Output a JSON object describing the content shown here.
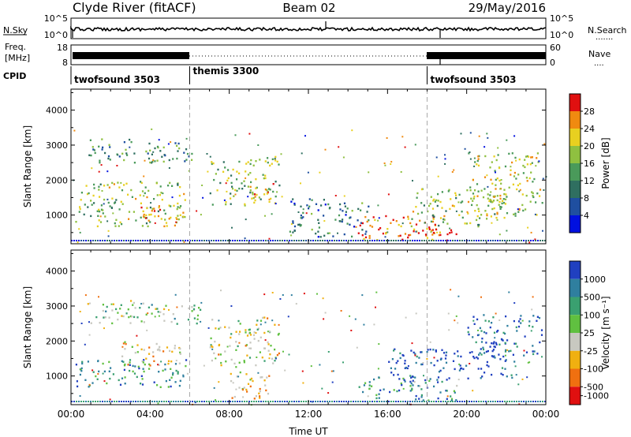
{
  "header": {
    "station": "Clyde River (fitACF)",
    "beam": "Beam 02",
    "date": "29/May/2016"
  },
  "strip_nsky": {
    "left_label": "N.Sky",
    "left_ticks": [
      "10^5",
      "10^0"
    ],
    "right_ticks": [
      "10^5",
      "10^0"
    ],
    "right_label": "N.Search",
    "right_line": "......."
  },
  "strip_freq": {
    "left_label_1": "Freq.",
    "left_label_2": "[MHz]",
    "left_ticks": [
      "18",
      "8"
    ],
    "right_ticks": [
      "60",
      "0"
    ],
    "right_label": "Nave",
    "right_line": "...."
  },
  "cpid": {
    "label": "CPID",
    "segments": [
      {
        "name": "twofsound 3503",
        "start_hour": 0
      },
      {
        "name": "themis 3300",
        "start_hour": 6
      },
      {
        "name": "twofsound 3503",
        "start_hour": 18
      }
    ]
  },
  "chart_data": [
    {
      "type": "heatmap",
      "name": "Power",
      "ylabel": "Slant Range [km]",
      "ylim": [
        180,
        4600
      ],
      "yticks": [
        "1000",
        "2000",
        "3000",
        "4000"
      ],
      "xlim_hours": [
        0,
        24
      ],
      "colorbar_label": "Power [dB]",
      "colorbar_ticks": [
        "4",
        "8",
        "12",
        "16",
        "20",
        "24",
        "28"
      ],
      "colors": [
        "#0010e0",
        "#1f4fa0",
        "#2f6f60",
        "#4a9a5a",
        "#8fc040",
        "#e8d020",
        "#f08a10",
        "#e01010"
      ],
      "regions": [
        {
          "t0": 0.8,
          "t1": 3.2,
          "r0": 2500,
          "r1": 3200,
          "v": 0.35
        },
        {
          "t0": 0.2,
          "t1": 5.8,
          "r0": 700,
          "r1": 2000,
          "v": 0.55
        },
        {
          "t0": 3.5,
          "t1": 5.5,
          "r0": 700,
          "r1": 1300,
          "v": 0.8
        },
        {
          "t0": 3.2,
          "t1": 6.5,
          "r0": 2500,
          "r1": 3100,
          "v": 0.4
        },
        {
          "t0": 7.0,
          "t1": 10.5,
          "r0": 1300,
          "r1": 2700,
          "v": 0.5
        },
        {
          "t0": 9.0,
          "t1": 10.2,
          "r0": 1500,
          "r1": 2000,
          "v": 0.75
        },
        {
          "t0": 11.0,
          "t1": 15.0,
          "r0": 400,
          "r1": 1500,
          "v": 0.3
        },
        {
          "t0": 14.5,
          "t1": 18.5,
          "r0": 300,
          "r1": 1000,
          "v": 0.85
        },
        {
          "t0": 16.5,
          "t1": 19.5,
          "r0": 300,
          "r1": 700,
          "v": 0.95
        },
        {
          "t0": 17.0,
          "t1": 22.0,
          "r0": 700,
          "r1": 1800,
          "v": 0.55
        },
        {
          "t0": 20.0,
          "t1": 23.8,
          "r0": 1000,
          "r1": 2800,
          "v": 0.6
        }
      ]
    },
    {
      "type": "heatmap",
      "name": "Velocity",
      "ylabel": "Slant Range [km]",
      "ylim": [
        180,
        4600
      ],
      "yticks": [
        "1000",
        "2000",
        "3000",
        "4000"
      ],
      "xlim_hours": [
        0,
        24
      ],
      "x_tick_labels": [
        "00:00",
        "04:00",
        "08:00",
        "12:00",
        "16:00",
        "20:00",
        "00:00"
      ],
      "xlabel": "Time UT",
      "colorbar_label": "Velocity [m s⁻¹]",
      "colorbar_ticks": [
        "1000",
        "500",
        "100",
        "25",
        "-25",
        "-100",
        "-500",
        "-1000"
      ],
      "colors": [
        "#2040c0",
        "#2f7f9f",
        "#3aa070",
        "#60c040",
        "#c8c8c0",
        "#f0b010",
        "#f07010",
        "#e01010"
      ],
      "regions": [
        {
          "t0": 0.8,
          "t1": 3.2,
          "r0": 2500,
          "r1": 3200,
          "v": 0.45
        },
        {
          "t0": 3.2,
          "t1": 6.5,
          "r0": 2500,
          "r1": 3100,
          "v": 0.45
        },
        {
          "t0": 0.2,
          "t1": 5.8,
          "r0": 700,
          "r1": 1500,
          "v": 0.25
        },
        {
          "t0": 2.5,
          "t1": 5.5,
          "r0": 1200,
          "r1": 2000,
          "v": 0.6
        },
        {
          "t0": 7.0,
          "t1": 10.5,
          "r0": 1300,
          "r1": 2700,
          "v": 0.55
        },
        {
          "t0": 8.0,
          "t1": 10.0,
          "r0": 300,
          "r1": 1200,
          "v": 0.7
        },
        {
          "t0": 14.5,
          "t1": 19.5,
          "r0": 300,
          "r1": 1000,
          "v": 0.3
        },
        {
          "t0": 16.0,
          "t1": 22.5,
          "r0": 900,
          "r1": 1800,
          "v": 0.05
        },
        {
          "t0": 20.0,
          "t1": 23.8,
          "r0": 1500,
          "r1": 2800,
          "v": 0.1
        }
      ]
    }
  ]
}
